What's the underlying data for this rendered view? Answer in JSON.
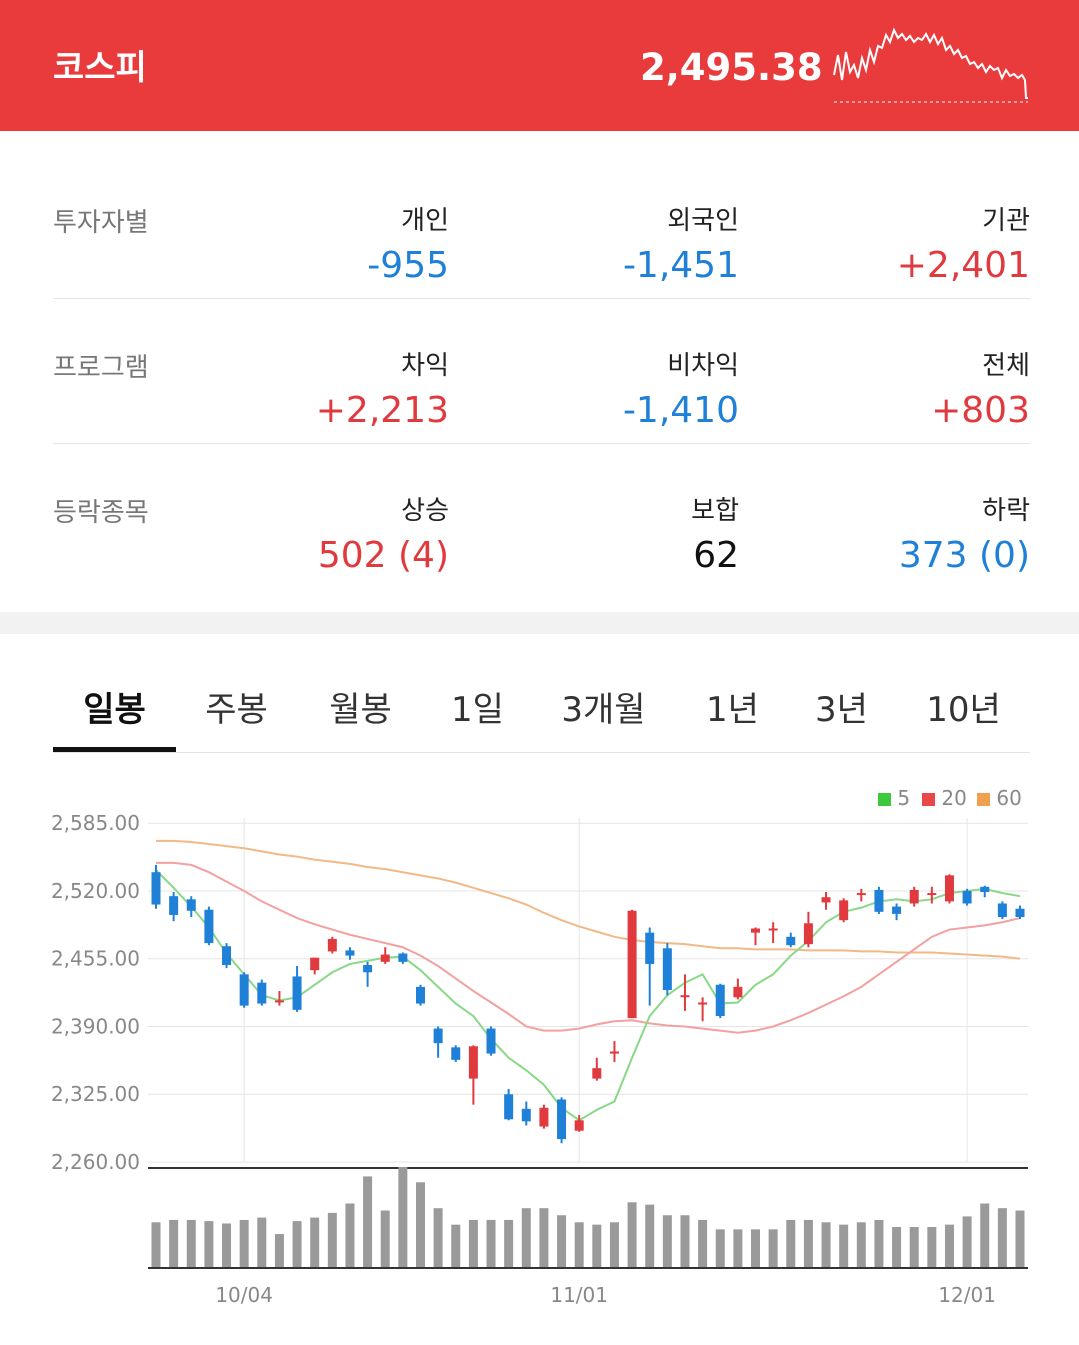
{
  "header": {
    "title": "코스피",
    "value": "2,495.38"
  },
  "rows": [
    {
      "label": "투자자별",
      "cols": [
        {
          "name": "개인",
          "value": "-955",
          "dir": "down"
        },
        {
          "name": "외국인",
          "value": "-1,451",
          "dir": "down"
        },
        {
          "name": "기관",
          "value": "+2,401",
          "dir": "up"
        }
      ]
    },
    {
      "label": "프로그램",
      "cols": [
        {
          "name": "차익",
          "value": "+2,213",
          "dir": "up"
        },
        {
          "name": "비차익",
          "value": "-1,410",
          "dir": "down"
        },
        {
          "name": "전체",
          "value": "+803",
          "dir": "up"
        }
      ]
    },
    {
      "label": "등락종목",
      "cols": [
        {
          "name": "상승",
          "value": "502 (4)",
          "dir": "up"
        },
        {
          "name": "보합",
          "value": "62",
          "dir": "flat"
        },
        {
          "name": "하락",
          "value": "373 (0)",
          "dir": "down"
        }
      ]
    }
  ],
  "tabs": [
    "일봉",
    "주봉",
    "월봉",
    "1일",
    "3개월",
    "1년",
    "3년",
    "10년"
  ],
  "active_tab": "일봉",
  "colors": {
    "up": "#e03a3e",
    "down": "#1f80d8",
    "flat": "#111111",
    "ma5": "#3cc93c",
    "ma20": "#e8484a",
    "ma60": "#f0a050"
  },
  "chart_data": {
    "type": "candlestick",
    "ylim": [
      2260,
      2590
    ],
    "yticks": [
      "2,585.00",
      "2,520.00",
      "2,455.00",
      "2,390.00",
      "2,325.00",
      "2,260.00"
    ],
    "xticks": [
      "10/04",
      "11/01",
      "12/01"
    ],
    "legend": [
      "5",
      "20",
      "60"
    ],
    "candles": [
      {
        "o": 2538,
        "c": 2507,
        "h": 2545,
        "l": 2503
      },
      {
        "o": 2515,
        "c": 2497,
        "h": 2519,
        "l": 2491
      },
      {
        "o": 2512,
        "c": 2501,
        "h": 2515,
        "l": 2495
      },
      {
        "o": 2502,
        "c": 2470,
        "h": 2505,
        "l": 2468
      },
      {
        "o": 2467,
        "c": 2449,
        "h": 2470,
        "l": 2446
      },
      {
        "o": 2440,
        "c": 2410,
        "h": 2442,
        "l": 2408
      },
      {
        "o": 2432,
        "c": 2412,
        "h": 2435,
        "l": 2410
      },
      {
        "o": 2415,
        "c": 2415,
        "h": 2424,
        "l": 2410
      },
      {
        "o": 2438,
        "c": 2406,
        "h": 2448,
        "l": 2404
      },
      {
        "o": 2444,
        "c": 2456,
        "h": 2456,
        "l": 2440
      },
      {
        "o": 2462,
        "c": 2474,
        "h": 2476,
        "l": 2460
      },
      {
        "o": 2463,
        "c": 2458,
        "h": 2466,
        "l": 2454
      },
      {
        "o": 2449,
        "c": 2442,
        "h": 2452,
        "l": 2428
      },
      {
        "o": 2452,
        "c": 2459,
        "h": 2466,
        "l": 2450
      },
      {
        "o": 2460,
        "c": 2452,
        "h": 2461,
        "l": 2450
      },
      {
        "o": 2428,
        "c": 2412,
        "h": 2430,
        "l": 2410
      },
      {
        "o": 2388,
        "c": 2374,
        "h": 2390,
        "l": 2360
      },
      {
        "o": 2370,
        "c": 2358,
        "h": 2372,
        "l": 2356
      },
      {
        "o": 2340,
        "c": 2371,
        "h": 2372,
        "l": 2315
      },
      {
        "o": 2388,
        "c": 2364,
        "h": 2390,
        "l": 2362
      },
      {
        "o": 2325,
        "c": 2301,
        "h": 2330,
        "l": 2300
      },
      {
        "o": 2311,
        "c": 2299,
        "h": 2318,
        "l": 2295
      },
      {
        "o": 2294,
        "c": 2312,
        "h": 2315,
        "l": 2292
      },
      {
        "o": 2320,
        "c": 2282,
        "h": 2322,
        "l": 2278
      },
      {
        "o": 2290,
        "c": 2300,
        "h": 2305,
        "l": 2289
      },
      {
        "o": 2340,
        "c": 2350,
        "h": 2360,
        "l": 2338
      },
      {
        "o": 2364,
        "c": 2366,
        "h": 2376,
        "l": 2356
      },
      {
        "o": 2398,
        "c": 2501,
        "h": 2502,
        "l": 2398
      },
      {
        "o": 2480,
        "c": 2450,
        "h": 2485,
        "l": 2410
      },
      {
        "o": 2465,
        "c": 2425,
        "h": 2470,
        "l": 2420
      },
      {
        "o": 2420,
        "c": 2420,
        "h": 2440,
        "l": 2405
      },
      {
        "o": 2413,
        "c": 2413,
        "h": 2418,
        "l": 2395
      },
      {
        "o": 2430,
        "c": 2400,
        "h": 2431,
        "l": 2398
      },
      {
        "o": 2418,
        "c": 2428,
        "h": 2436,
        "l": 2416
      },
      {
        "o": 2480,
        "c": 2484,
        "h": 2485,
        "l": 2468
      },
      {
        "o": 2484,
        "c": 2484,
        "h": 2490,
        "l": 2470
      },
      {
        "o": 2476,
        "c": 2468,
        "h": 2480,
        "l": 2466
      },
      {
        "o": 2469,
        "c": 2489,
        "h": 2500,
        "l": 2466
      },
      {
        "o": 2509,
        "c": 2514,
        "h": 2519,
        "l": 2502
      },
      {
        "o": 2492,
        "c": 2511,
        "h": 2513,
        "l": 2490
      },
      {
        "o": 2518,
        "c": 2518,
        "h": 2522,
        "l": 2510
      },
      {
        "o": 2521,
        "c": 2500,
        "h": 2524,
        "l": 2498
      },
      {
        "o": 2505,
        "c": 2498,
        "h": 2508,
        "l": 2492
      },
      {
        "o": 2508,
        "c": 2521,
        "h": 2524,
        "l": 2505
      },
      {
        "o": 2518,
        "c": 2518,
        "h": 2524,
        "l": 2508
      },
      {
        "o": 2510,
        "c": 2535,
        "h": 2536,
        "l": 2508
      },
      {
        "o": 2520,
        "c": 2508,
        "h": 2522,
        "l": 2506
      },
      {
        "o": 2524,
        "c": 2519,
        "h": 2525,
        "l": 2514
      },
      {
        "o": 2508,
        "c": 2495,
        "h": 2510,
        "l": 2493
      },
      {
        "o": 2503,
        "c": 2495,
        "h": 2506,
        "l": 2493
      }
    ],
    "ma5": [
      2540,
      2523,
      2505,
      2485,
      2460,
      2440,
      2420,
      2415,
      2418,
      2430,
      2442,
      2450,
      2453,
      2456,
      2457,
      2444,
      2428,
      2412,
      2400,
      2378,
      2360,
      2348,
      2334,
      2312,
      2300,
      2310,
      2318,
      2360,
      2400,
      2420,
      2432,
      2440,
      2412,
      2413,
      2430,
      2440,
      2458,
      2472,
      2490,
      2500,
      2504,
      2510,
      2512,
      2510,
      2512,
      2518,
      2520,
      2522,
      2518,
      2515
    ],
    "ma20": [
      2547,
      2547,
      2545,
      2538,
      2529,
      2520,
      2510,
      2502,
      2494,
      2488,
      2483,
      2478,
      2474,
      2470,
      2466,
      2458,
      2448,
      2436,
      2424,
      2413,
      2402,
      2390,
      2386,
      2386,
      2388,
      2392,
      2395,
      2396,
      2393,
      2391,
      2390,
      2388,
      2386,
      2384,
      2386,
      2390,
      2396,
      2403,
      2411,
      2419,
      2428,
      2440,
      2452,
      2464,
      2476,
      2483,
      2485,
      2487,
      2490,
      2494
    ],
    "ma60": [
      2568,
      2568,
      2567,
      2565,
      2563,
      2561,
      2558,
      2555,
      2553,
      2550,
      2548,
      2546,
      2543,
      2541,
      2538,
      2535,
      2532,
      2528,
      2523,
      2518,
      2513,
      2507,
      2499,
      2492,
      2486,
      2481,
      2476,
      2473,
      2471,
      2470,
      2469,
      2467,
      2465,
      2465,
      2464,
      2464,
      2464,
      2463,
      2463,
      2463,
      2462,
      2462,
      2461,
      2461,
      2461,
      2460,
      2459,
      2458,
      2457,
      2455
    ],
    "volume": [
      38,
      40,
      40,
      39,
      37,
      40,
      42,
      28,
      39,
      42,
      46,
      54,
      77,
      48,
      85,
      72,
      50,
      36,
      40,
      40,
      40,
      50,
      50,
      44,
      38,
      36,
      38,
      55,
      53,
      44,
      44,
      40,
      32,
      32,
      32,
      32,
      40,
      40,
      38,
      36,
      38,
      40,
      34,
      34,
      34,
      36,
      43,
      54,
      50,
      48
    ],
    "volume_up": [
      false,
      false,
      false,
      false,
      false,
      false,
      false,
      false,
      false,
      true,
      true,
      false,
      false,
      true,
      false,
      false,
      false,
      false,
      true,
      false,
      false,
      false,
      true,
      false,
      true,
      true,
      true,
      true,
      false,
      false,
      false,
      false,
      false,
      true,
      true,
      true,
      false,
      true,
      true,
      true,
      false,
      false,
      false,
      true,
      false,
      true,
      false,
      false,
      false,
      false
    ]
  }
}
